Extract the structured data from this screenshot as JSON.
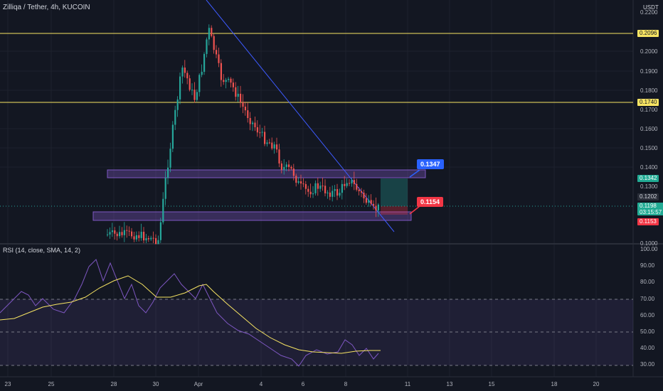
{
  "header": {
    "symbol": "Zilliqa / Tether, 4h, KUCOIN",
    "currency": "USDT"
  },
  "rsi": {
    "label": "RSI (14, close, SMA, 14, 2)",
    "ticks": [
      "100.00",
      "90.00",
      "80.00",
      "70.00",
      "60.00",
      "50.00",
      "40.00",
      "30.00"
    ]
  },
  "price_axis": {
    "ticks": [
      "0.2200",
      "0.2000",
      "0.1900",
      "0.1800",
      "0.1700",
      "0.1600",
      "0.1500",
      "0.1400",
      "0.1300",
      "0.1000"
    ]
  },
  "tags": {
    "h1": "0.2096",
    "h2": "0.1740",
    "tp": "0.1342",
    "last": "0.1202",
    "current": "0.1198",
    "countdown": "03:15:57",
    "sl": "0.1153"
  },
  "callouts": {
    "target": "0.1347",
    "stop": "0.1154"
  },
  "time_axis": [
    "23",
    "25",
    "28",
    "30",
    "Apr",
    "4",
    "6",
    "8",
    "11",
    "13",
    "15",
    "18",
    "20"
  ],
  "colors": {
    "up": "#26a69a",
    "down": "#ef5350",
    "zone": "#7e57c2",
    "trendline": "#3d5afe",
    "rsi": "#7e57c2",
    "rsi_ma": "#f7e463",
    "hline": "#f7e463"
  }
}
